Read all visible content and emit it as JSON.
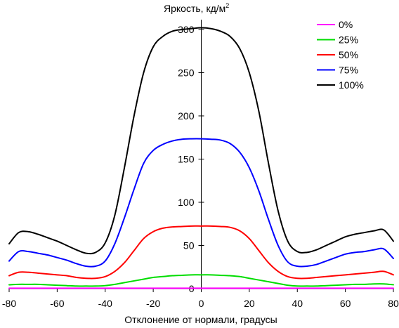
{
  "chart_data": {
    "type": "line",
    "title": "",
    "ylabel": "Яркость, кд/м",
    "ylabel_superscript": "2",
    "xlabel": "Отклонение от нормали, градусы",
    "xlim": [
      -80,
      80
    ],
    "ylim": [
      0,
      310
    ],
    "xticks": [
      -80,
      -60,
      -40,
      -20,
      0,
      20,
      40,
      60,
      80
    ],
    "yticks": [
      0,
      50,
      100,
      150,
      200,
      250,
      300
    ],
    "grid": false,
    "legend_position": "top-right",
    "x": [
      -80,
      -76,
      -72,
      -68,
      -64,
      -60,
      -56,
      -52,
      -48,
      -44,
      -40,
      -36,
      -32,
      -28,
      -24,
      -20,
      -16,
      -12,
      -8,
      -4,
      0,
      4,
      8,
      12,
      16,
      20,
      24,
      28,
      32,
      36,
      40,
      44,
      48,
      52,
      56,
      60,
      64,
      68,
      72,
      76,
      80
    ],
    "series": [
      {
        "name": "0%",
        "color": "#ff00ff",
        "values": [
          0.5,
          0.5,
          0.5,
          0.5,
          0.5,
          0.5,
          0.5,
          0.5,
          0.5,
          0.5,
          0.5,
          0.5,
          0.5,
          0.5,
          0.5,
          0.5,
          0.5,
          0.5,
          0.5,
          0.5,
          0.5,
          0.5,
          0.5,
          0.5,
          0.5,
          0.5,
          0.5,
          0.5,
          0.5,
          0.5,
          0.5,
          0.5,
          0.5,
          0.5,
          0.5,
          0.5,
          0.5,
          0.5,
          0.5,
          0.5,
          0.5
        ]
      },
      {
        "name": "25%",
        "color": "#00dd00",
        "values": [
          4.5,
          5,
          5,
          5,
          4.5,
          4,
          3.5,
          3,
          3,
          3,
          3.5,
          5,
          7,
          9,
          11,
          13,
          14,
          15,
          15.5,
          16,
          16,
          16,
          15.5,
          15,
          14,
          12,
          10,
          8,
          6,
          4,
          3,
          3,
          3,
          3.5,
          4,
          4.5,
          5,
          5,
          5.5,
          5.5,
          4.5
        ]
      },
      {
        "name": "50%",
        "color": "#ff0000",
        "values": [
          15,
          19,
          19,
          18,
          17,
          16,
          15,
          13,
          12,
          12,
          14,
          20,
          30,
          44,
          58,
          66,
          70,
          71.5,
          72,
          72.5,
          72.5,
          72.5,
          72,
          71,
          67,
          58,
          44,
          30,
          20,
          14,
          12,
          12,
          13,
          14,
          15,
          16,
          17,
          18,
          19,
          20,
          16
        ]
      },
      {
        "name": "75%",
        "color": "#0000ff",
        "values": [
          32,
          43,
          43,
          41,
          39,
          36,
          33,
          29,
          26,
          26,
          32,
          52,
          82,
          115,
          145,
          160,
          167,
          171,
          173,
          173.5,
          173.5,
          173,
          172,
          168,
          158,
          140,
          113,
          80,
          50,
          31,
          26,
          26,
          28,
          32,
          36,
          40,
          42,
          43,
          45,
          46,
          35
        ]
      },
      {
        "name": "100%",
        "color": "#000000",
        "values": [
          52,
          65,
          66,
          63,
          59,
          55,
          50,
          45,
          41,
          42,
          53,
          85,
          140,
          200,
          250,
          280,
          292,
          298,
          300,
          301,
          302,
          301,
          298,
          292,
          278,
          250,
          205,
          145,
          90,
          55,
          43,
          42,
          45,
          50,
          55,
          60,
          63,
          65,
          67,
          68,
          55
        ]
      }
    ]
  }
}
